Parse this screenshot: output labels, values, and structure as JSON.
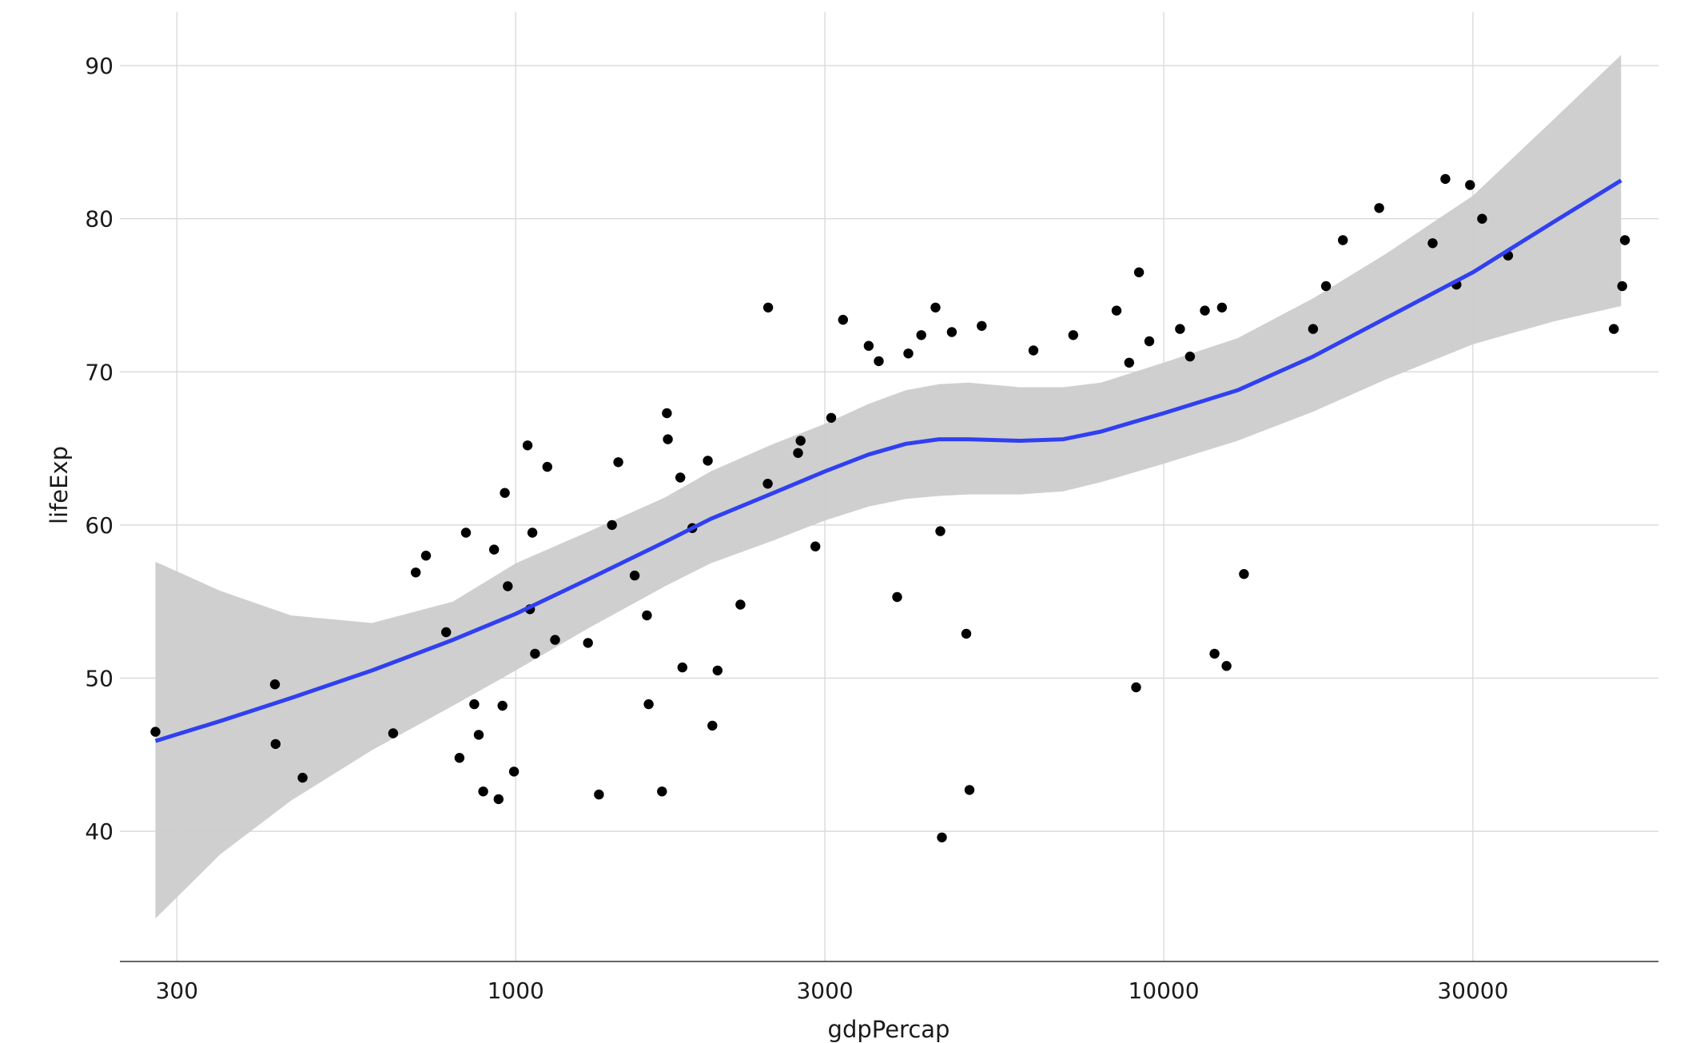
{
  "chart_data": {
    "type": "scatter",
    "title": "",
    "xlabel": "gdpPercap",
    "ylabel": "lifeExp",
    "x_scale": "log10",
    "xlim": [
      245,
      58000
    ],
    "ylim": [
      31.5,
      93.5
    ],
    "x_ticks": [
      300,
      1000,
      3000,
      10000,
      30000
    ],
    "x_tick_labels": [
      "300",
      "1000",
      "3000",
      "10000",
      "30000"
    ],
    "y_ticks": [
      40,
      50,
      60,
      70,
      80,
      90
    ],
    "y_tick_labels": [
      "40",
      "50",
      "60",
      "70",
      "80",
      "90"
    ],
    "grid": true,
    "colors": {
      "points": "#000000",
      "smooth_line": "#3040f0",
      "confidence_band": "#cccccc"
    },
    "series": [
      {
        "type": "points",
        "x": [
          278,
          425,
          426,
          469,
          647,
          701,
          727,
          781,
          819,
          838,
          863,
          877,
          891,
          926,
          941,
          954,
          962,
          972,
          994,
          1043,
          1052,
          1061,
          1071,
          1119,
          1150,
          1293,
          1344,
          1408,
          1440,
          1526,
          1594,
          1604,
          1682,
          1711,
          1717,
          1795,
          1808,
          1873,
          1979,
          2011,
          2049,
          2222,
          2449,
          2452,
          2727,
          2752,
          2900,
          3068,
          3200,
          3505,
          3633,
          3878,
          4035,
          4226,
          4444,
          4521,
          4547,
          4710,
          4958,
          5015,
          5237,
          6294,
          7251,
          8457,
          8845,
          9158,
          9065,
          9500,
          10597,
          10979,
          11574,
          11979,
          12300,
          12500,
          13300,
          17000,
          17800,
          18900,
          21500,
          26000,
          27200,
          28300,
          29700,
          31000,
          34000,
          49500,
          51000,
          51500
        ],
        "y": [
          46.5,
          49.6,
          45.7,
          43.5,
          46.4,
          56.9,
          58.0,
          53.0,
          44.8,
          59.5,
          48.3,
          46.3,
          42.6,
          58.4,
          42.1,
          48.2,
          62.1,
          56.0,
          43.9,
          65.2,
          54.5,
          59.5,
          51.6,
          63.8,
          52.5,
          52.3,
          42.4,
          60.0,
          64.1,
          56.7,
          54.1,
          48.3,
          42.6,
          67.3,
          65.6,
          63.1,
          50.7,
          59.8,
          64.2,
          46.9,
          50.5,
          54.8,
          62.7,
          74.2,
          64.7,
          65.5,
          58.6,
          67.0,
          73.4,
          71.7,
          70.7,
          55.3,
          71.2,
          72.4,
          74.2,
          59.6,
          39.6,
          72.6,
          52.9,
          42.7,
          73.0,
          71.4,
          72.4,
          74.0,
          70.6,
          76.5,
          49.4,
          72.0,
          72.8,
          71.0,
          74.0,
          51.6,
          74.2,
          50.8,
          56.8,
          72.8,
          75.6,
          78.6,
          80.7,
          78.4,
          82.6,
          75.7,
          82.2,
          80.0,
          77.6,
          72.8,
          75.6,
          78.6
        ]
      },
      {
        "type": "smooth",
        "method": "loess",
        "x": [
          278,
          350,
          450,
          600,
          800,
          1000,
          1300,
          1700,
          2000,
          2500,
          3000,
          3500,
          4000,
          4500,
          5000,
          6000,
          7000,
          8000,
          10000,
          13000,
          17000,
          22000,
          30000,
          40000,
          50800
        ],
        "y": [
          45.9,
          47.2,
          48.7,
          50.5,
          52.5,
          54.2,
          56.5,
          58.9,
          60.4,
          62.1,
          63.5,
          64.6,
          65.3,
          65.6,
          65.6,
          65.5,
          65.6,
          66.1,
          67.3,
          68.8,
          71.0,
          73.5,
          76.5,
          79.8,
          82.5
        ],
        "ci_lower": [
          34.3,
          38.5,
          42.0,
          45.3,
          48.2,
          50.5,
          53.3,
          56.0,
          57.5,
          59.0,
          60.3,
          61.2,
          61.7,
          61.9,
          62.0,
          62.0,
          62.2,
          62.8,
          64.0,
          65.5,
          67.4,
          69.5,
          71.8,
          73.3,
          74.3
        ],
        "ci_upper": [
          57.6,
          55.7,
          54.1,
          53.6,
          55.0,
          57.5,
          59.6,
          61.8,
          63.5,
          65.3,
          66.6,
          67.9,
          68.8,
          69.2,
          69.3,
          69.0,
          69.0,
          69.3,
          70.6,
          72.2,
          74.8,
          77.7,
          81.5,
          86.5,
          90.7
        ]
      }
    ]
  }
}
